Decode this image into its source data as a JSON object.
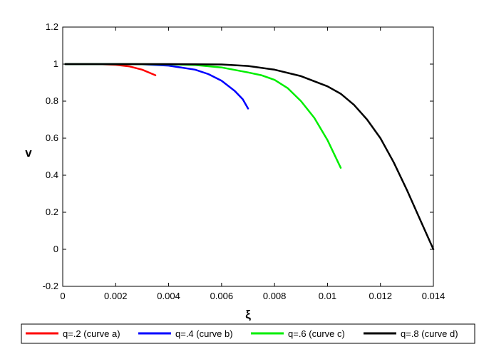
{
  "chart_data": {
    "type": "line",
    "title": "",
    "xlabel": "ξ",
    "ylabel": "v",
    "xlim": [
      0,
      0.014
    ],
    "ylim": [
      -0.2,
      1.2
    ],
    "xticks": [
      "0",
      "0.002",
      "0.004",
      "0.006",
      "0.008",
      "0.01",
      "0.012",
      "0.014"
    ],
    "xtick_values": [
      0,
      0.002,
      0.004,
      0.006,
      0.008,
      0.01,
      0.012,
      0.014
    ],
    "yticks": [
      "-0.2",
      "0",
      "0.2",
      "0.4",
      "0.6",
      "0.8",
      "1",
      "1.2"
    ],
    "ytick_values": [
      -0.2,
      0,
      0.2,
      0.4,
      0.6,
      0.8,
      1,
      1.2
    ],
    "grid": false,
    "legend_placement": "bottom",
    "series": [
      {
        "name": "q=.2 (curve a)",
        "color": "#ff0000",
        "x": [
          0.0001,
          0.0005,
          0.001,
          0.0015,
          0.002,
          0.0025,
          0.003,
          0.0033,
          0.0035
        ],
        "y": [
          1.0,
          1.0,
          1.0,
          0.999,
          0.996,
          0.988,
          0.97,
          0.952,
          0.94
        ]
      },
      {
        "name": "q=.4 (curve b)",
        "color": "#0000ff",
        "x": [
          0.0001,
          0.001,
          0.002,
          0.003,
          0.004,
          0.005,
          0.0055,
          0.006,
          0.0065,
          0.0068,
          0.007
        ],
        "y": [
          1.0,
          1.0,
          1.0,
          0.999,
          0.992,
          0.97,
          0.946,
          0.91,
          0.855,
          0.81,
          0.76
        ]
      },
      {
        "name": "q=.6 (curve c)",
        "color": "#00ee00",
        "x": [
          0.0001,
          0.002,
          0.004,
          0.005,
          0.006,
          0.007,
          0.0075,
          0.008,
          0.0085,
          0.009,
          0.0095,
          0.01,
          0.0105
        ],
        "y": [
          1.0,
          1.0,
          0.999,
          0.995,
          0.982,
          0.955,
          0.94,
          0.915,
          0.87,
          0.8,
          0.71,
          0.59,
          0.44
        ]
      },
      {
        "name": "q=.8 (curve d)",
        "color": "#000000",
        "x": [
          0.0001,
          0.002,
          0.004,
          0.006,
          0.007,
          0.008,
          0.009,
          0.01,
          0.0105,
          0.011,
          0.0115,
          0.012,
          0.0125,
          0.013,
          0.0135,
          0.014
        ],
        "y": [
          1.0,
          1.0,
          1.0,
          0.998,
          0.99,
          0.97,
          0.935,
          0.88,
          0.84,
          0.78,
          0.7,
          0.6,
          0.47,
          0.32,
          0.16,
          0.0
        ]
      }
    ]
  }
}
